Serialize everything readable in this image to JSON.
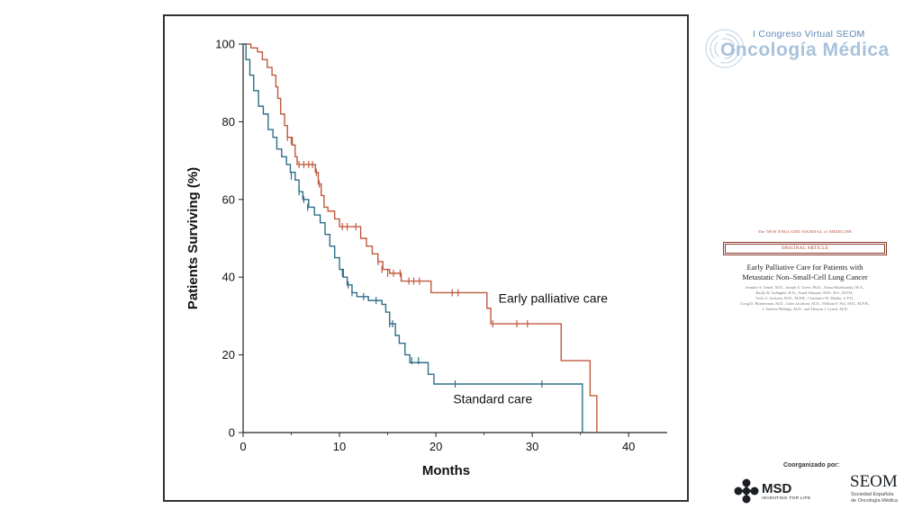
{
  "chart_data": {
    "type": "line",
    "subtype": "kaplan-meier step",
    "title": "",
    "xlabel": "Months",
    "ylabel": "Patients Surviving (%)",
    "xlim": [
      0,
      44
    ],
    "ylim": [
      0,
      100
    ],
    "x_ticks": [
      "0",
      "10",
      "20",
      "30",
      "40"
    ],
    "y_ticks": [
      "0",
      "20",
      "40",
      "60",
      "80",
      "100"
    ],
    "grid": false,
    "legend": "none (series labeled inline)",
    "series": [
      {
        "name": "Early palliative care",
        "color": "#c05a3e",
        "steps": [
          [
            0,
            100
          ],
          [
            0.8,
            99
          ],
          [
            1.5,
            98
          ],
          [
            2.0,
            96
          ],
          [
            2.5,
            94
          ],
          [
            3.0,
            92
          ],
          [
            3.4,
            89
          ],
          [
            3.6,
            86
          ],
          [
            3.9,
            82
          ],
          [
            4.3,
            79
          ],
          [
            4.6,
            76
          ],
          [
            5.1,
            74
          ],
          [
            5.4,
            71
          ],
          [
            5.6,
            69
          ],
          [
            7.5,
            67
          ],
          [
            7.8,
            64
          ],
          [
            8.1,
            61
          ],
          [
            8.4,
            58
          ],
          [
            8.8,
            57
          ],
          [
            9.5,
            55
          ],
          [
            10.0,
            53
          ],
          [
            12.2,
            50
          ],
          [
            12.8,
            48
          ],
          [
            13.4,
            46
          ],
          [
            14.0,
            44
          ],
          [
            14.5,
            42
          ],
          [
            15.2,
            41
          ],
          [
            16.4,
            39
          ],
          [
            19.5,
            36
          ],
          [
            25.3,
            32
          ],
          [
            25.7,
            28
          ],
          [
            33.0,
            18.5
          ],
          [
            36.0,
            9.5
          ],
          [
            36.7,
            0
          ]
        ],
        "censored": [
          [
            4.6,
            76
          ],
          [
            5.0,
            75
          ],
          [
            5.8,
            69
          ],
          [
            6.3,
            69
          ],
          [
            6.8,
            69
          ],
          [
            7.2,
            69
          ],
          [
            7.6,
            67
          ],
          [
            7.9,
            64
          ],
          [
            10.3,
            53
          ],
          [
            10.8,
            53
          ],
          [
            11.7,
            53
          ],
          [
            14.0,
            44
          ],
          [
            14.4,
            42
          ],
          [
            15.0,
            41
          ],
          [
            15.6,
            41
          ],
          [
            16.3,
            41
          ],
          [
            17.2,
            39
          ],
          [
            17.7,
            39
          ],
          [
            18.3,
            39
          ],
          [
            21.7,
            36
          ],
          [
            22.3,
            36
          ],
          [
            25.9,
            28
          ],
          [
            28.4,
            28
          ],
          [
            29.5,
            28
          ]
        ]
      },
      {
        "name": "Standard care",
        "color": "#2e6e88",
        "steps": [
          [
            0,
            100
          ],
          [
            0.3,
            96
          ],
          [
            0.7,
            92
          ],
          [
            1.1,
            88
          ],
          [
            1.6,
            84
          ],
          [
            2.1,
            82
          ],
          [
            2.6,
            78
          ],
          [
            3.1,
            76
          ],
          [
            3.5,
            73
          ],
          [
            4.0,
            71
          ],
          [
            4.5,
            69
          ],
          [
            4.9,
            67
          ],
          [
            5.4,
            65
          ],
          [
            5.8,
            62
          ],
          [
            6.2,
            60
          ],
          [
            6.8,
            58
          ],
          [
            7.4,
            56
          ],
          [
            8.0,
            54
          ],
          [
            8.5,
            51
          ],
          [
            9.0,
            48
          ],
          [
            9.5,
            45
          ],
          [
            10.0,
            42
          ],
          [
            10.4,
            40
          ],
          [
            10.8,
            38
          ],
          [
            11.3,
            36
          ],
          [
            11.8,
            35
          ],
          [
            13.0,
            34
          ],
          [
            14.4,
            33
          ],
          [
            14.8,
            31
          ],
          [
            15.2,
            28
          ],
          [
            15.8,
            25
          ],
          [
            16.2,
            23
          ],
          [
            16.8,
            20
          ],
          [
            17.3,
            18
          ],
          [
            19.2,
            15
          ],
          [
            19.8,
            12.5
          ],
          [
            35.2,
            0
          ]
        ],
        "censored": [
          [
            5.0,
            66
          ],
          [
            5.8,
            62
          ],
          [
            6.3,
            60
          ],
          [
            6.7,
            58
          ],
          [
            10.3,
            41
          ],
          [
            10.9,
            38
          ],
          [
            11.3,
            36
          ],
          [
            12.5,
            35
          ],
          [
            13.8,
            34
          ],
          [
            15.2,
            28
          ],
          [
            15.5,
            28
          ],
          [
            17.5,
            18.5
          ],
          [
            18.2,
            18.5
          ],
          [
            22.0,
            12.5
          ],
          [
            31.0,
            12.5
          ]
        ]
      }
    ],
    "annotations": [
      "Early palliative care",
      "Standard care"
    ]
  },
  "congress": {
    "subtitle": "I Congreso Virtual SEOM",
    "title": "Oncología Médica"
  },
  "paper": {
    "journal": "The NEW ENGLAND JOURNAL of MEDICINE",
    "article_type": "ORIGINAL ARTICLE",
    "title_line1": "Early Palliative Care for Patients with",
    "title_line2": "Metastatic Non–Small-Cell Lung Cancer",
    "authors_line1": "Jennifer S. Temel, M.D., Joseph A. Greer, Ph.D., Alona Muzikansky, M.A.,",
    "authors_line2": "Emily R. Gallagher, R.N., Sonal Admane, M.B., B.S., M.P.H.,",
    "authors_line3": "Vicki A. Jackson, M.D., M.P.H., Constance M. Dahlin, A.P.N.,",
    "authors_line4": "Craig D. Blinderman, M.D., Juliet Jacobsen, M.D., William F. Pirl, M.D., M.P.H.,",
    "authors_line5": "J. Andrew Billings, M.D., and Thomas J. Lynch, M.D."
  },
  "sponsors": {
    "coorganized": "Coorganizado por:",
    "msd_name": "MSD",
    "msd_tagline": "INVENTING FOR LIFE",
    "seom_name": "SEOM",
    "seom_sub_line1": "Sociedad Española",
    "seom_sub_line2": "de Oncología Médica"
  }
}
